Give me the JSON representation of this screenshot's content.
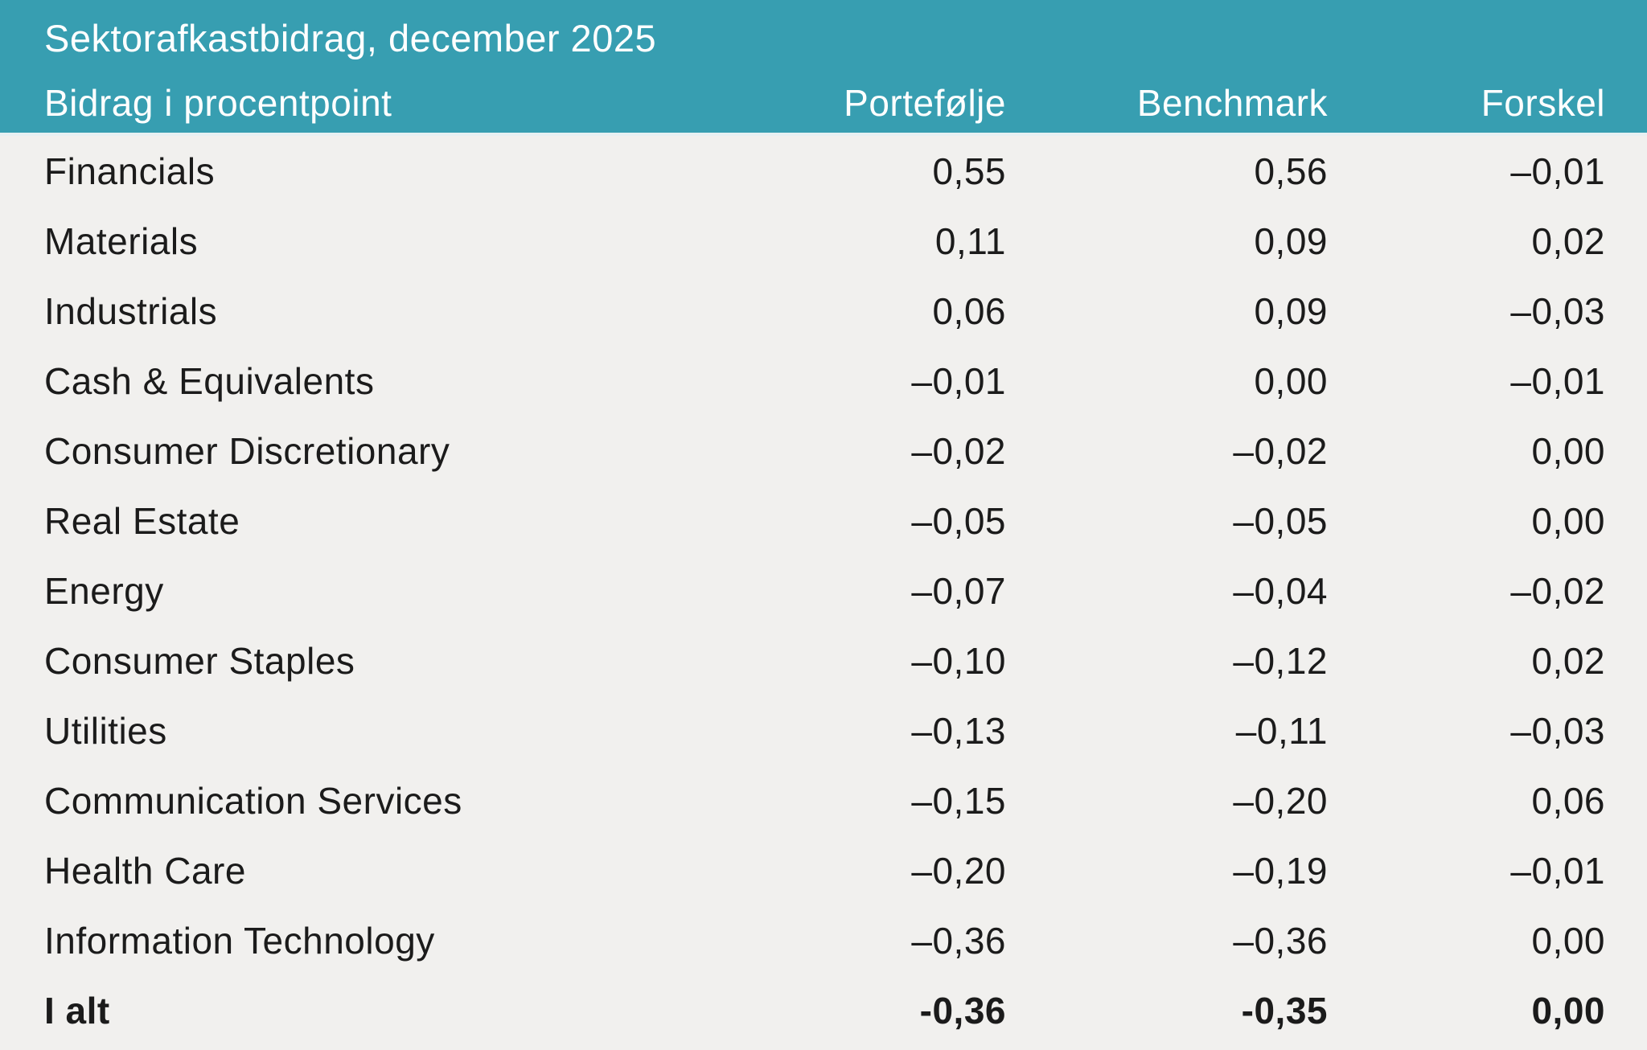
{
  "colors": {
    "header_bg": "#379EB1",
    "header_text": "#FFFFFF",
    "body_bg": "#F1F0EE",
    "text": "#1B1B1B",
    "separator": "#E7F0F2"
  },
  "header": {
    "title": "Sektorafkastbidrag, december 2025",
    "row_label_header": "Bidrag i procentpoint",
    "value_columns": [
      "Portefølje",
      "Benchmark",
      "Forskel"
    ]
  },
  "table": {
    "rows": [
      {
        "sector": "Financials",
        "portfolio": "0,55",
        "benchmark": "0,56",
        "difference": "–0,01"
      },
      {
        "sector": "Materials",
        "portfolio": "0,11",
        "benchmark": "0,09",
        "difference": "0,02"
      },
      {
        "sector": "Industrials",
        "portfolio": "0,06",
        "benchmark": "0,09",
        "difference": "–0,03"
      },
      {
        "sector": "Cash & Equivalents",
        "portfolio": "–0,01",
        "benchmark": "0,00",
        "difference": "–0,01"
      },
      {
        "sector": "Consumer Discretionary",
        "portfolio": "–0,02",
        "benchmark": "–0,02",
        "difference": "0,00"
      },
      {
        "sector": "Real Estate",
        "portfolio": "–0,05",
        "benchmark": "–0,05",
        "difference": "0,00"
      },
      {
        "sector": "Energy",
        "portfolio": "–0,07",
        "benchmark": "–0,04",
        "difference": "–0,02"
      },
      {
        "sector": "Consumer Staples",
        "portfolio": "–0,10",
        "benchmark": "–0,12",
        "difference": "0,02"
      },
      {
        "sector": "Utilities",
        "portfolio": "–0,13",
        "benchmark": "–0,11",
        "difference": "–0,03"
      },
      {
        "sector": "Communication Services",
        "portfolio": "–0,15",
        "benchmark": "–0,20",
        "difference": "0,06"
      },
      {
        "sector": "Health Care",
        "portfolio": "–0,20",
        "benchmark": "–0,19",
        "difference": "–0,01"
      },
      {
        "sector": "Information Technology",
        "portfolio": "–0,36",
        "benchmark": "–0,36",
        "difference": "0,00"
      }
    ],
    "total": {
      "sector": "I alt",
      "portfolio": "-0,36",
      "benchmark": "-0,35",
      "difference": "0,00"
    }
  },
  "chart_data": {
    "type": "table",
    "title": "Sektorafkastbidrag, december 2025",
    "unit_note": "Bidrag i procentpoint",
    "columns": [
      "Portefølje",
      "Benchmark",
      "Forskel"
    ],
    "categories": [
      "Financials",
      "Materials",
      "Industrials",
      "Cash & Equivalents",
      "Consumer Discretionary",
      "Real Estate",
      "Energy",
      "Consumer Staples",
      "Utilities",
      "Communication Services",
      "Health Care",
      "Information Technology",
      "I alt"
    ],
    "series": [
      {
        "name": "Portefølje",
        "values": [
          0.55,
          0.11,
          0.06,
          -0.01,
          -0.02,
          -0.05,
          -0.07,
          -0.1,
          -0.13,
          -0.15,
          -0.2,
          -0.36,
          -0.36
        ]
      },
      {
        "name": "Benchmark",
        "values": [
          0.56,
          0.09,
          0.09,
          0.0,
          -0.02,
          -0.05,
          -0.04,
          -0.12,
          -0.11,
          -0.2,
          -0.19,
          -0.36,
          -0.35
        ]
      },
      {
        "name": "Forskel",
        "values": [
          -0.01,
          0.02,
          -0.03,
          -0.01,
          0.0,
          0.0,
          -0.02,
          0.02,
          -0.03,
          0.06,
          -0.01,
          0.0,
          0.0
        ]
      }
    ]
  }
}
